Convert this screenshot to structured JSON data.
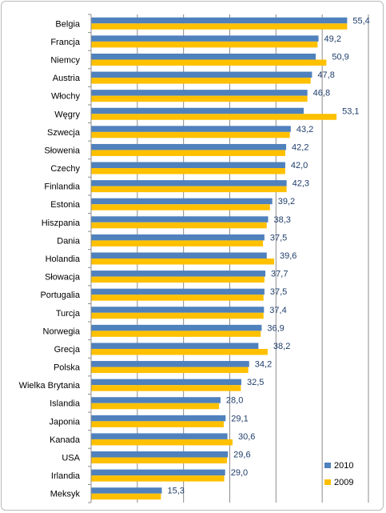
{
  "chart_data": {
    "type": "bar",
    "orientation": "horizontal",
    "title": "",
    "xlabel": "",
    "ylabel": "",
    "xlim": [
      0,
      60
    ],
    "grid": true,
    "legend_position": "bottom-right",
    "categories": [
      "Belgia",
      "Francja",
      "Niemcy",
      "Austria",
      "Włochy",
      "Węgry",
      "Szwecja",
      "Słowenia",
      "Czechy",
      "Finlandia",
      "Estonia",
      "Hiszpania",
      "Dania",
      "Holandia",
      "Słowacja",
      "Portugalia",
      "Turcja",
      "Norwegia",
      "Grecja",
      "Polska",
      "Wielka Brytania",
      "Islandia",
      "Japonia",
      "Kanada",
      "USA",
      "Irlandia",
      "Meksyk"
    ],
    "value_labels": [
      "55,4",
      "49,2",
      "50,9",
      "47,8",
      "46,8",
      "53,1",
      "43,2",
      "42,2",
      "42,0",
      "42,3",
      "39,2",
      "38,3",
      "37,5",
      "39,6",
      "37,7",
      "37,5",
      "37,4",
      "36,9",
      "38,2",
      "34,2",
      "32,5",
      "28,0",
      "29,1",
      "30,6",
      "29,6",
      "29,0",
      "15,3"
    ],
    "series": [
      {
        "name": "2010",
        "color": "#4f81bd",
        "values": [
          55.4,
          49.2,
          48.6,
          47.8,
          46.8,
          46.0,
          43.2,
          42.2,
          42.0,
          42.3,
          39.2,
          38.3,
          37.5,
          38.0,
          37.7,
          37.5,
          37.4,
          36.9,
          36.2,
          34.2,
          32.5,
          28.0,
          29.1,
          29.5,
          29.6,
          29.0,
          15.3
        ]
      },
      {
        "name": "2009",
        "color": "#ffc000",
        "values": [
          55.4,
          49.0,
          50.9,
          47.5,
          46.8,
          53.1,
          43.0,
          42.0,
          42.0,
          42.3,
          38.7,
          38.0,
          37.2,
          39.6,
          37.5,
          37.3,
          37.3,
          36.7,
          38.2,
          34.0,
          32.4,
          27.7,
          28.7,
          30.6,
          29.4,
          28.8,
          15.1
        ]
      }
    ]
  }
}
